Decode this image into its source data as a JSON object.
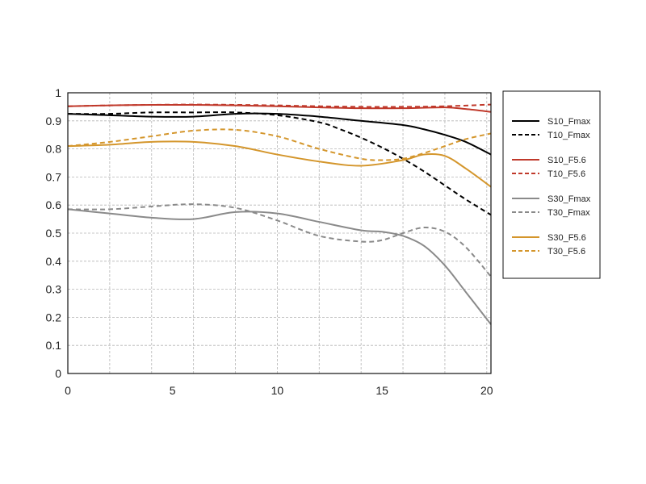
{
  "chart_data": {
    "type": "line",
    "title": "",
    "xlabel": "",
    "ylabel": "",
    "xlim": [
      0,
      20.2
    ],
    "ylim": [
      0,
      1
    ],
    "x_ticks": [
      0,
      5,
      10,
      15,
      20
    ],
    "x_tick_labels": [
      "0",
      "5",
      "10",
      "15",
      "20"
    ],
    "y_ticks": [
      0,
      0.1,
      0.2,
      0.3,
      0.4,
      0.5,
      0.6,
      0.7,
      0.8,
      0.9,
      1
    ],
    "y_tick_labels": [
      "0",
      "0.1",
      "0.2",
      "0.3",
      "0.4",
      "0.5",
      "0.6",
      "0.7",
      "0.8",
      "0.9",
      "1"
    ],
    "x_grid": [
      2,
      4,
      6,
      8,
      10,
      12,
      14,
      16,
      18,
      20
    ],
    "grid": true,
    "legend_position": "right",
    "series": [
      {
        "name": "S10_Fmax",
        "color": "#000000",
        "dash": "solid",
        "x": [
          0,
          2,
          4,
          6,
          8,
          10,
          12,
          14,
          16,
          17,
          18,
          19,
          20.2
        ],
        "y": [
          0.925,
          0.92,
          0.915,
          0.915,
          0.925,
          0.925,
          0.915,
          0.9,
          0.885,
          0.87,
          0.85,
          0.825,
          0.78
        ]
      },
      {
        "name": "T10_Fmax",
        "color": "#000000",
        "dash": "dashed",
        "x": [
          0,
          2,
          4,
          6,
          8,
          10,
          12,
          13,
          14,
          15,
          16,
          17,
          18,
          19,
          20.2
        ],
        "y": [
          0.925,
          0.925,
          0.93,
          0.93,
          0.93,
          0.92,
          0.895,
          0.87,
          0.84,
          0.805,
          0.765,
          0.72,
          0.67,
          0.62,
          0.565
        ]
      },
      {
        "name": "S10_F5.6",
        "color": "#c0392b",
        "dash": "solid",
        "x": [
          0,
          2,
          4,
          6,
          8,
          10,
          12,
          14,
          16,
          18,
          19,
          20.2
        ],
        "y": [
          0.952,
          0.955,
          0.957,
          0.957,
          0.955,
          0.952,
          0.948,
          0.945,
          0.945,
          0.948,
          0.942,
          0.932
        ]
      },
      {
        "name": "T10_F5.6",
        "color": "#c0392b",
        "dash": "dashed",
        "x": [
          0,
          2,
          4,
          6,
          8,
          10,
          12,
          14,
          16,
          18,
          20.2
        ],
        "y": [
          0.952,
          0.955,
          0.957,
          0.958,
          0.957,
          0.955,
          0.952,
          0.95,
          0.95,
          0.952,
          0.958
        ]
      },
      {
        "name": "S30_Fmax",
        "color": "#8a8a8a",
        "dash": "solid",
        "x": [
          0,
          2,
          4,
          6,
          8,
          10,
          12,
          14,
          15,
          16,
          17,
          18,
          19,
          20.2
        ],
        "y": [
          0.585,
          0.57,
          0.555,
          0.55,
          0.575,
          0.57,
          0.54,
          0.51,
          0.505,
          0.49,
          0.455,
          0.385,
          0.29,
          0.175
        ]
      },
      {
        "name": "T30_Fmax",
        "color": "#8a8a8a",
        "dash": "dashed",
        "x": [
          0,
          2,
          4,
          6,
          8,
          10,
          12,
          14,
          15,
          16,
          17,
          18,
          19,
          20.2
        ],
        "y": [
          0.585,
          0.585,
          0.595,
          0.603,
          0.59,
          0.545,
          0.49,
          0.47,
          0.475,
          0.5,
          0.52,
          0.505,
          0.45,
          0.345
        ]
      },
      {
        "name": "S30_F5.6",
        "color": "#d4962c",
        "dash": "solid",
        "x": [
          0,
          2,
          4,
          6,
          8,
          10,
          12,
          14,
          16,
          17,
          18,
          19,
          20.2
        ],
        "y": [
          0.81,
          0.815,
          0.825,
          0.825,
          0.81,
          0.78,
          0.755,
          0.74,
          0.76,
          0.78,
          0.775,
          0.73,
          0.665
        ]
      },
      {
        "name": "T30_F5.6",
        "color": "#d4962c",
        "dash": "dashed",
        "x": [
          0,
          2,
          4,
          6,
          8,
          10,
          12,
          14,
          15,
          16,
          17,
          18,
          19,
          20.2
        ],
        "y": [
          0.81,
          0.825,
          0.845,
          0.865,
          0.868,
          0.845,
          0.8,
          0.765,
          0.76,
          0.765,
          0.785,
          0.81,
          0.835,
          0.855
        ]
      }
    ]
  }
}
